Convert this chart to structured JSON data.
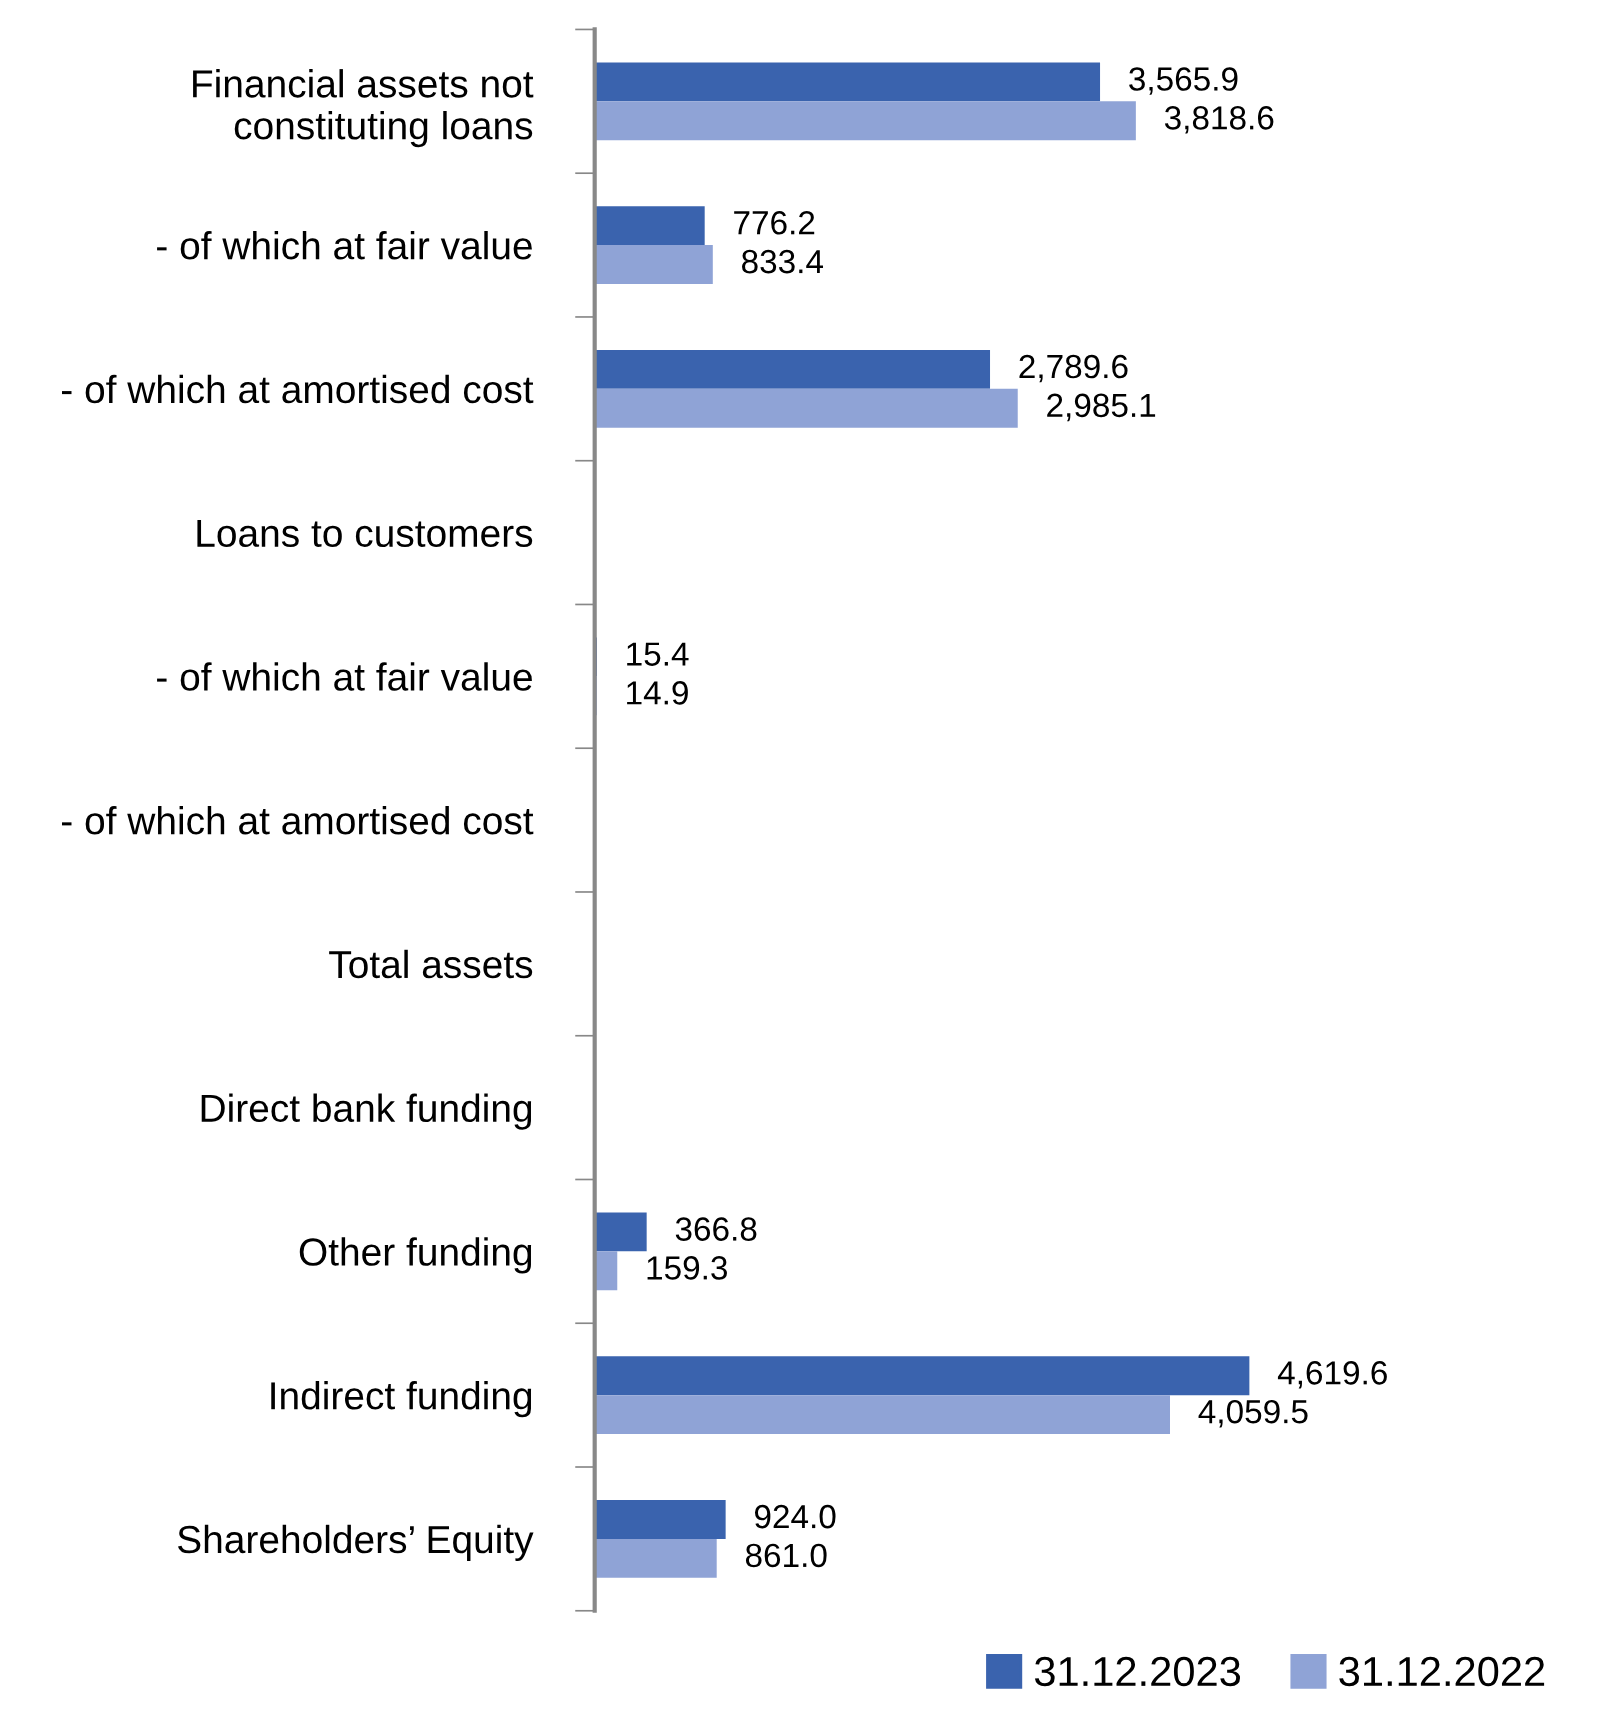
{
  "chart_data": {
    "type": "bar",
    "orientation": "horizontal",
    "categories": [
      "Financial assets not\nconstituting loans",
      "- of which at fair value",
      "- of which at amortised cost",
      "Loans to customers",
      "- of which at fair value",
      "- of which at amortised cost",
      "Total assets",
      "Direct bank funding",
      "Other funding",
      "Indirect funding",
      "Shareholders’ Equity"
    ],
    "series": [
      {
        "name": "31.12.2023",
        "color": "#3a63ae",
        "values": [
          3565.9,
          776.2,
          2789.6,
          null,
          15.4,
          null,
          null,
          null,
          366.8,
          4619.6,
          924.0
        ],
        "value_labels": [
          "3,565.9",
          "776.2",
          "2,789.6",
          null,
          "15.4",
          null,
          null,
          null,
          "366.8",
          "4,619.6",
          "924.0"
        ]
      },
      {
        "name": "31.12.2022",
        "color": "#8fa3d6",
        "values": [
          3818.6,
          833.4,
          2985.1,
          null,
          14.9,
          null,
          null,
          null,
          159.3,
          4059.5,
          861.0
        ],
        "value_labels": [
          "3,818.6",
          "833.4",
          "2,985.1",
          null,
          "14.9",
          null,
          null,
          null,
          "159.3",
          "4,059.5",
          "861.0"
        ]
      }
    ],
    "legend": "bottom right",
    "grid": false,
    "tick_labels": "y"
  }
}
